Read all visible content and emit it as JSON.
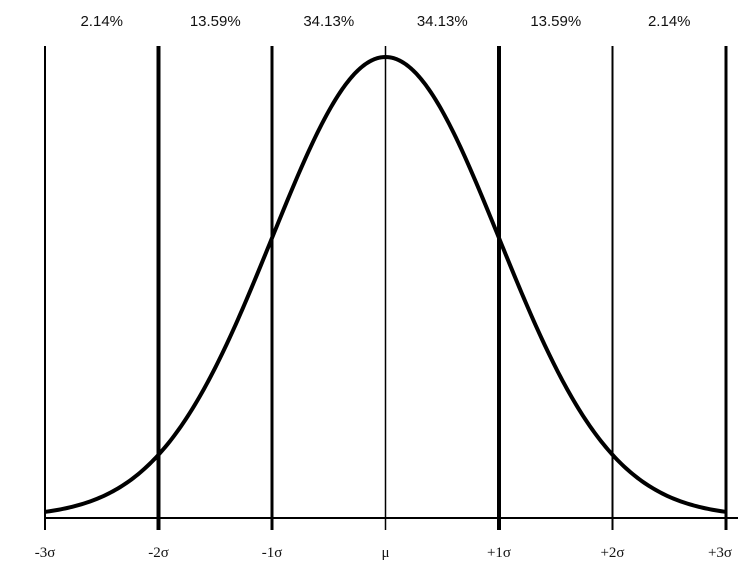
{
  "chart_data": {
    "type": "line",
    "title": "",
    "xlabel": "",
    "ylabel": "",
    "xlim": [
      -3,
      3
    ],
    "grid": false,
    "curve": {
      "function": "standard-normal-pdf",
      "mean": 0,
      "sd": 1
    },
    "vertical_lines_at": [
      -3,
      -2,
      -1,
      0,
      1,
      2,
      3
    ],
    "tick_labels": [
      "-3σ",
      "-2σ",
      "-1σ",
      "μ",
      "+1σ",
      "+2σ",
      "+3σ"
    ],
    "band_percentages": [
      "2.14%",
      "13.59%",
      "34.13%",
      "34.13%",
      "13.59%",
      "2.14%"
    ],
    "colors": {
      "line": "#000000",
      "text": "#111111",
      "background": "#ffffff"
    }
  }
}
